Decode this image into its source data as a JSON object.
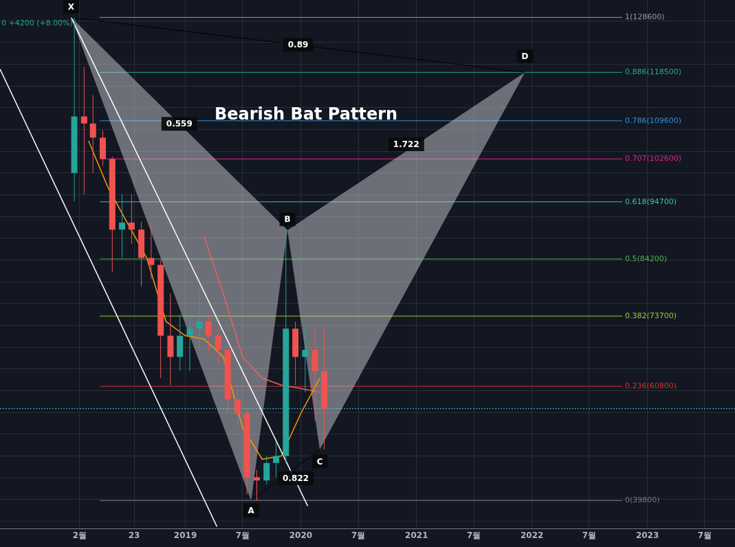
{
  "chart_data": {
    "type": "candlestick",
    "title": "Bearish Bat Pattern",
    "x": [
      "2018-01-15",
      "2018-02-15",
      "2018-03-15",
      "2018-04-15",
      "2018-05-15",
      "2018-06-15",
      "2018-07-15",
      "2018-08-15",
      "2018-09-15",
      "2018-10-15",
      "2018-11-15",
      "2018-12-15",
      "2019-01-15",
      "2019-02-15",
      "2019-03-15",
      "2019-04-15",
      "2019-05-15",
      "2019-06-15",
      "2019-07-15",
      "2019-08-15",
      "2019-09-15",
      "2019-10-15",
      "2019-11-15",
      "2019-12-15",
      "2020-01-15",
      "2020-02-15",
      "2020-03-15"
    ],
    "ohlc": [
      [
        100000,
        128600,
        94800,
        110400
      ],
      [
        110400,
        119500,
        96100,
        109100
      ],
      [
        109100,
        114300,
        100000,
        106500
      ],
      [
        106500,
        107800,
        101300,
        102600
      ],
      [
        102600,
        103000,
        81800,
        89600
      ],
      [
        89600,
        96100,
        84400,
        90900
      ],
      [
        90900,
        96100,
        87000,
        89600
      ],
      [
        89600,
        91000,
        79200,
        84400
      ],
      [
        84400,
        90900,
        80500,
        83100
      ],
      [
        83100,
        84000,
        62300,
        70100
      ],
      [
        70100,
        77900,
        61000,
        66200
      ],
      [
        66200,
        74000,
        63600,
        70100
      ],
      [
        70100,
        74000,
        63600,
        71400
      ],
      [
        71400,
        78600,
        67500,
        72700
      ],
      [
        72700,
        74000,
        66900,
        70100
      ],
      [
        70100,
        71400,
        64900,
        67500
      ],
      [
        67500,
        68000,
        55800,
        58400
      ],
      [
        58400,
        61000,
        53200,
        55800
      ],
      [
        55800,
        57000,
        40900,
        44100
      ],
      [
        44100,
        45400,
        39800,
        43500
      ],
      [
        43500,
        48000,
        42800,
        46700
      ],
      [
        46700,
        50600,
        44100,
        48000
      ],
      [
        48000,
        89500,
        46700,
        71400
      ],
      [
        71400,
        72700,
        61000,
        66200
      ],
      [
        66200,
        72100,
        59700,
        67500
      ],
      [
        67500,
        72100,
        54500,
        63600
      ],
      [
        63600,
        71400,
        49200,
        56700
      ]
    ],
    "colors": [
      "#26a69a",
      "#ef5350",
      "#ef5350",
      "#ef5350",
      "#ef5350",
      "#26a69a",
      "#ef5350",
      "#ef5350",
      "#ef5350",
      "#ef5350",
      "#ef5350",
      "#26a69a",
      "#26a69a",
      "#26a69a",
      "#ef5350",
      "#ef5350",
      "#ef5350",
      "#ef5350",
      "#ef5350",
      "#ef5350",
      "#26a69a",
      "#26a69a",
      "#26a69a",
      "#ef5350",
      "#26a69a",
      "#ef5350",
      "#ef5350"
    ],
    "series": [
      {
        "type": "area",
        "color": "#c8c8cd",
        "x": [
          "2018-01-05",
          "2019-07-28",
          "2019-11-20",
          "2018-01-05"
        ],
        "values": [
          128600,
          39800,
          89500,
          128600
        ]
      },
      {
        "type": "area",
        "color": "#c8c8cd",
        "x": [
          "2019-11-20",
          "2020-03-01",
          "2021-12-10",
          "2019-11-20"
        ],
        "values": [
          89500,
          49200,
          118500,
          89500
        ]
      },
      {
        "type": "line",
        "color": "#000000",
        "x": [
          "2018-01-05",
          "2021-12-10"
        ],
        "values": [
          128600,
          118500
        ]
      },
      {
        "type": "line",
        "color": "#000000",
        "x": [
          "2019-07-28",
          "2020-03-01"
        ],
        "values": [
          39800,
          49200
        ]
      },
      {
        "type": "line",
        "color": "#ffffff",
        "x": [
          "2017-05-25",
          "2019-04-11"
        ],
        "values": [
          119100,
          35000
        ]
      },
      {
        "type": "line",
        "color": "#ffffff",
        "x": [
          "2018-01-05",
          "2020-01-23"
        ],
        "values": [
          128600,
          38800
        ]
      },
      {
        "type": "line",
        "color": "#ff9800",
        "x": [
          "2018-03-01",
          "2018-05-01",
          "2018-07-01",
          "2018-09-01",
          "2018-11-01",
          "2019-01-01",
          "2019-03-01",
          "2019-05-01",
          "2019-07-01",
          "2019-09-01",
          "2019-11-01",
          "2020-01-01",
          "2020-03-01"
        ],
        "values": [
          105900,
          97400,
          90900,
          84400,
          72700,
          70100,
          69500,
          66200,
          53200,
          47400,
          48000,
          55800,
          62300
        ]
      },
      {
        "type": "line",
        "color": "#f0625a",
        "x": [
          "2019-03-01",
          "2019-05-01",
          "2019-07-01",
          "2019-09-01",
          "2019-11-01",
          "2020-01-01",
          "2020-03-01"
        ],
        "values": [
          88300,
          77900,
          66200,
          62300,
          61000,
          60400,
          59700
        ]
      }
    ],
    "ref_lines": [
      {
        "axis": "y",
        "value": 128600,
        "label": "1(128600)",
        "color": "#9598a1"
      },
      {
        "axis": "y",
        "value": 118500,
        "label": "0.886(118500)",
        "color": "#22ab94"
      },
      {
        "axis": "y",
        "value": 109600,
        "label": "0.786(109600)",
        "color": "#2e8fd6"
      },
      {
        "axis": "y",
        "value": 102600,
        "label": "0.707(102600)",
        "color": "#d9268f"
      },
      {
        "axis": "y",
        "value": 94700,
        "label": "0.618(94700)",
        "color": "#3cc39e"
      },
      {
        "axis": "y",
        "value": 84200,
        "label": "0.5(84200)",
        "color": "#4caf50"
      },
      {
        "axis": "y",
        "value": 73700,
        "label": "0.382(73700)",
        "color": "#9ccc2c"
      },
      {
        "axis": "y",
        "value": 60800,
        "label": "0.236(60800)",
        "color": "#d32f2f"
      },
      {
        "axis": "y",
        "value": 39800,
        "label": "0(39800)",
        "color": "#787b86"
      },
      {
        "axis": "y",
        "value": 56700,
        "color": "#26c6da",
        "line_style": "dotted"
      }
    ],
    "annotations": [
      "0 +4200 (+8.00%)",
      {
        "text": "X",
        "x": "2018-01-05",
        "y": 130600
      },
      {
        "text": "A",
        "x": "2019-07-28",
        "y": 38000
      },
      {
        "text": "B",
        "x": "2019-11-20",
        "y": 91500
      },
      {
        "text": "C",
        "x": "2020-03-01",
        "y": 47000
      },
      {
        "text": "D",
        "x": "2021-12-10",
        "y": 121500
      },
      "0.89",
      "0.559",
      "1.722",
      "0.822"
    ],
    "xlim": [
      "2017-05-25",
      "2023-10-05"
    ],
    "xticks": [
      {
        "value": "2018-02-01",
        "label": "2월"
      },
      {
        "value": "2018-07-23",
        "label": "23"
      },
      {
        "value": "2019-01-01",
        "label": "2019"
      },
      {
        "value": "2019-07-01",
        "label": "7월"
      },
      {
        "value": "2020-01-01",
        "label": "2020"
      },
      {
        "value": "2020-07-01",
        "label": "7월"
      },
      {
        "value": "2021-01-01",
        "label": "2021"
      },
      {
        "value": "2021-07-01",
        "label": "7월"
      },
      {
        "value": "2022-01-01",
        "label": "2022"
      },
      {
        "value": "2022-07-01",
        "label": "7월"
      },
      {
        "value": "2023-01-01",
        "label": "2023"
      },
      {
        "value": "2023-07-01",
        "label": "7월"
      }
    ],
    "ylim": [
      34600,
      131800
    ],
    "yticks": [
      {
        "value": 36000,
        "label": null
      },
      {
        "value": 40000,
        "label": null
      },
      {
        "value": 44000,
        "label": null
      },
      {
        "value": 48000,
        "label": null
      },
      {
        "value": 52000,
        "label": null
      },
      {
        "value": 56000,
        "label": null
      },
      {
        "value": 60000,
        "label": null
      },
      {
        "value": 64000,
        "label": null
      },
      {
        "value": 68000,
        "label": null
      },
      {
        "value": 72000,
        "label": null
      },
      {
        "value": 76000,
        "label": null
      },
      {
        "value": 80000,
        "label": null
      },
      {
        "value": 84000,
        "label": null
      },
      {
        "value": 88000,
        "label": null
      },
      {
        "value": 92000,
        "label": null
      },
      {
        "value": 96000,
        "label": null
      },
      {
        "value": 100000,
        "label": null
      },
      {
        "value": 104000,
        "label": null
      },
      {
        "value": 108000,
        "label": null
      },
      {
        "value": 112000,
        "label": null
      },
      {
        "value": 116000,
        "label": null
      },
      {
        "value": 120000,
        "label": null
      },
      {
        "value": 124000,
        "label": null
      },
      {
        "value": 128000,
        "label": null
      }
    ],
    "grid": true,
    "legend": false,
    "tick_labels": "x",
    "marker": "none"
  }
}
